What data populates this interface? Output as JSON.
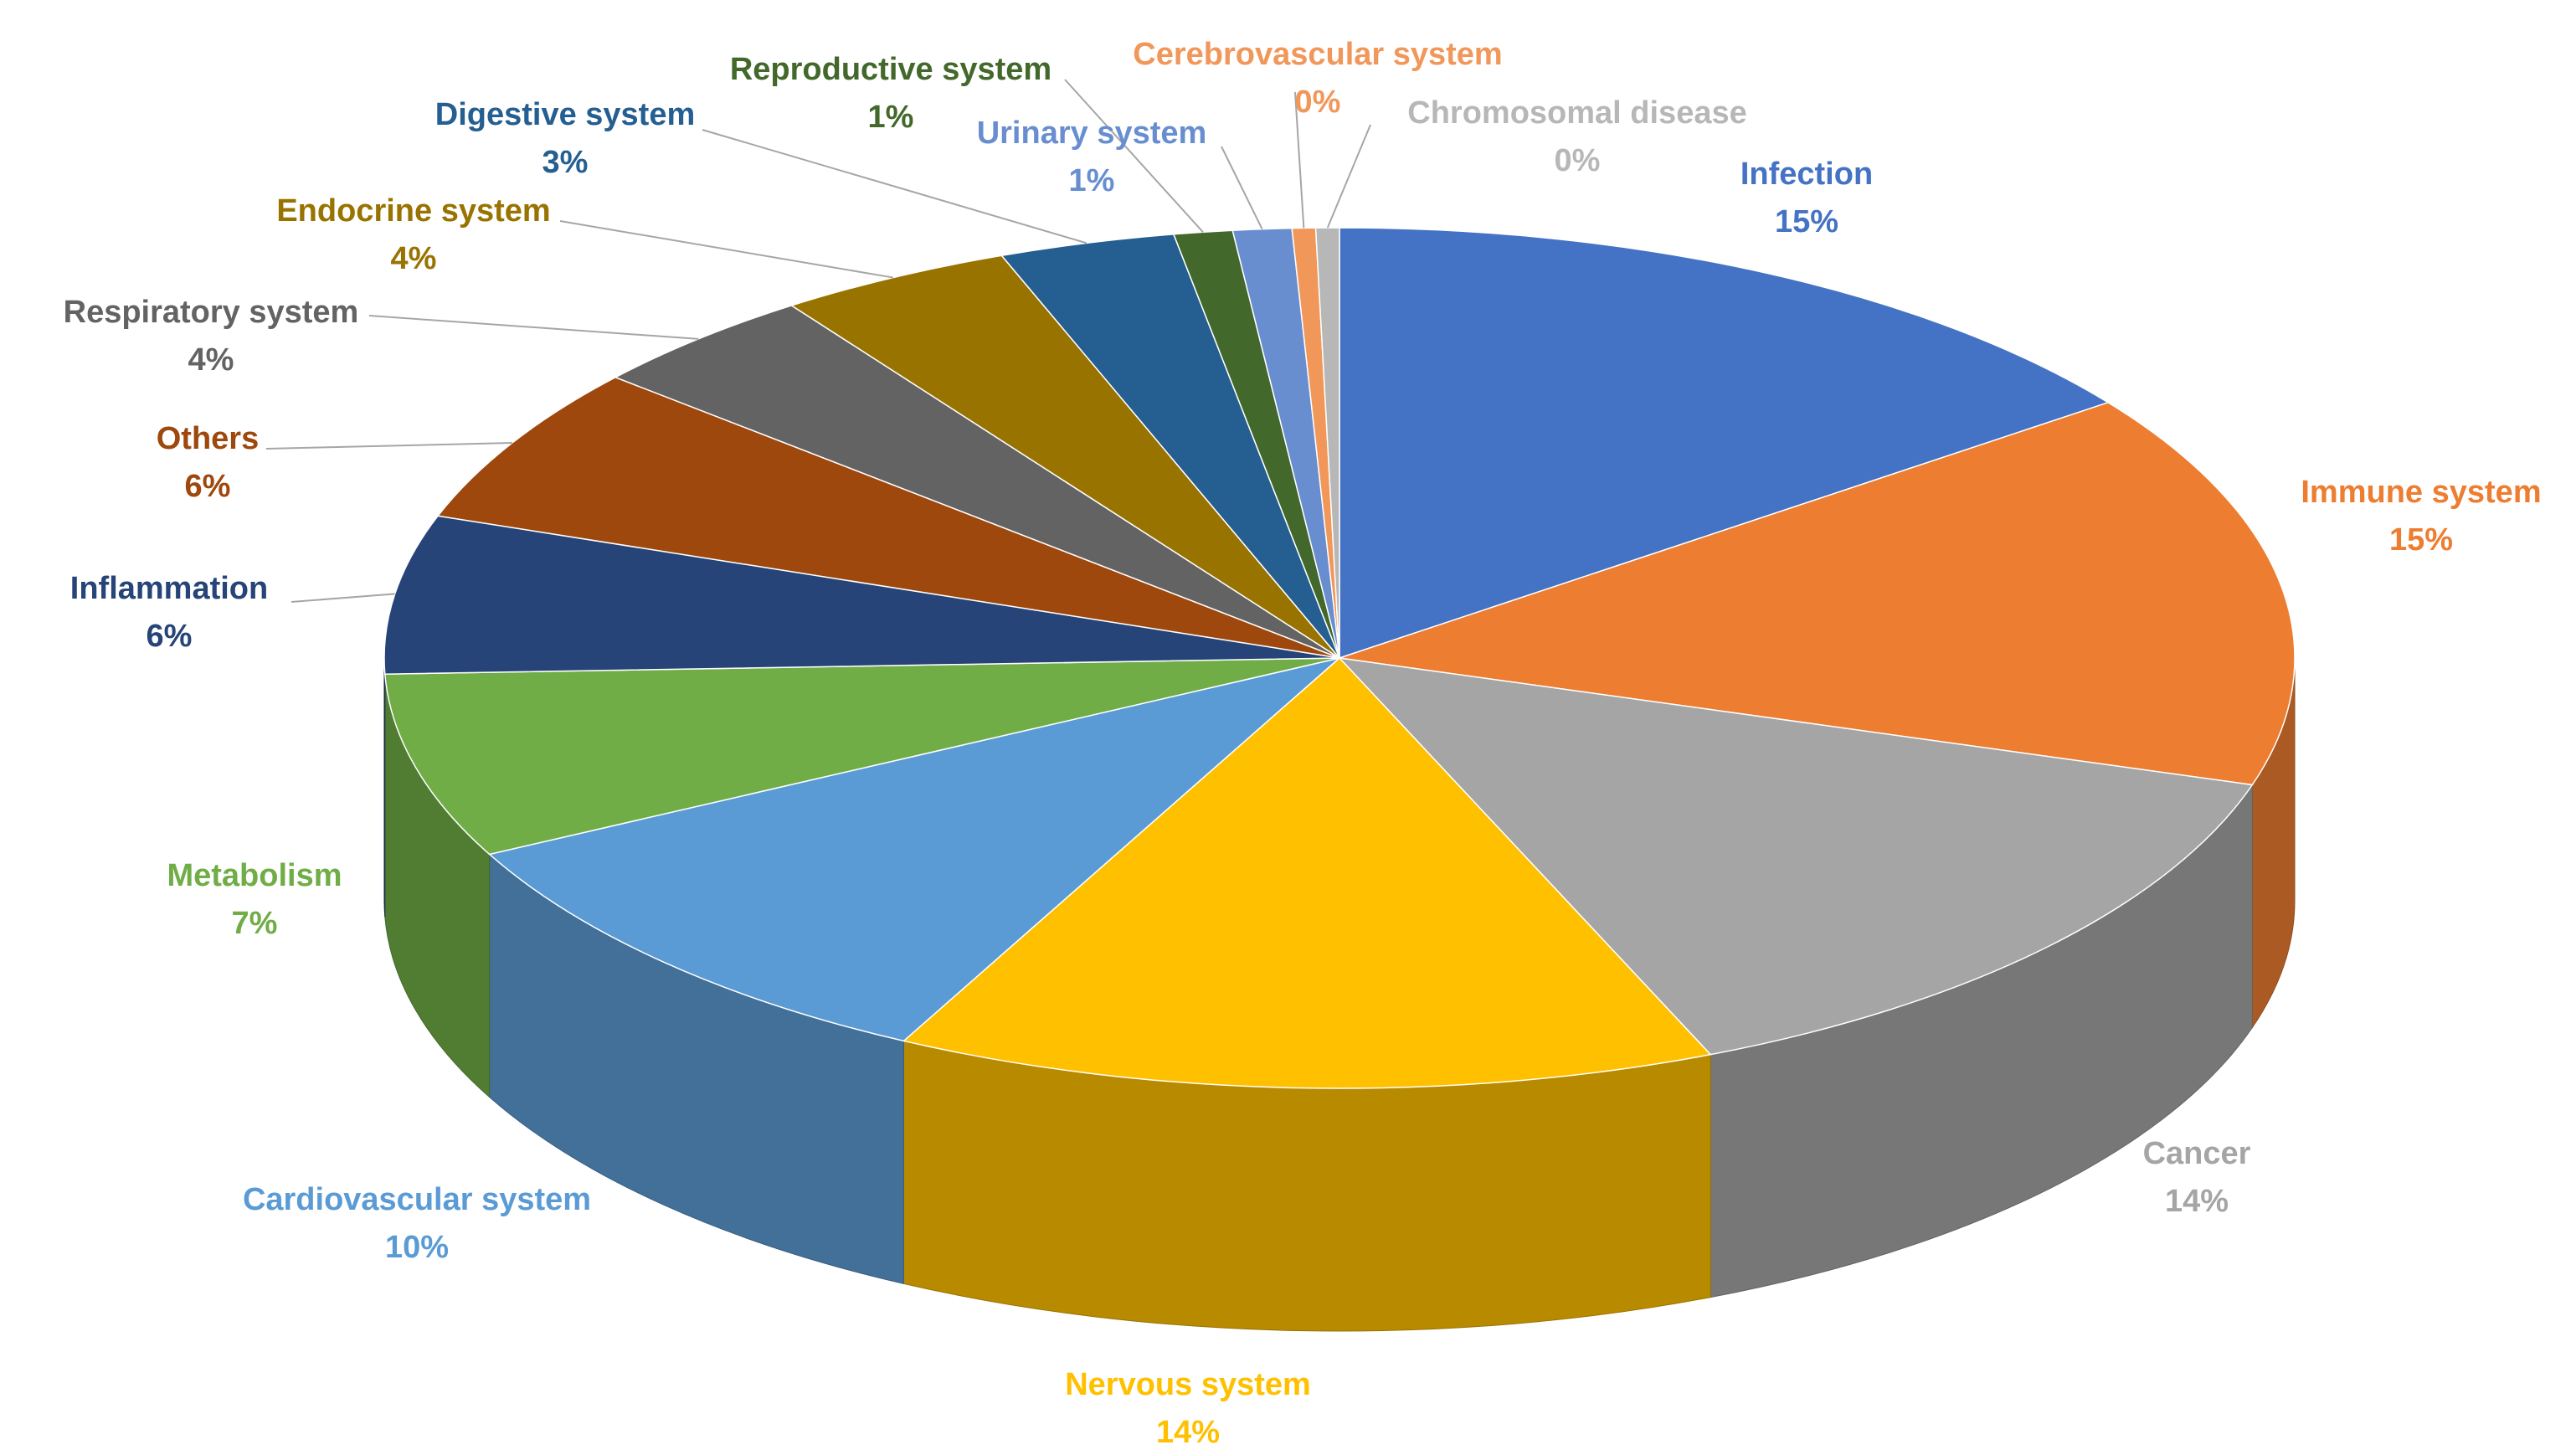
{
  "chart_data": {
    "type": "pie",
    "categories": [
      "Infection",
      "Immune system",
      "Cancer",
      "Nervous system",
      "Cardiovascular system",
      "Metabolism",
      "Inflammation",
      "Others",
      "Respiratory system",
      "Endocrine system",
      "Digestive system",
      "Reproductive system",
      "Urinary system",
      "Cerebrovascular system",
      "Chromosomal disease"
    ],
    "values": [
      15,
      15,
      14,
      14,
      10,
      7,
      6,
      6,
      4,
      4,
      3,
      1,
      1,
      0.4,
      0.4
    ],
    "value_labels": [
      "15%",
      "15%",
      "14%",
      "14%",
      "10%",
      "7%",
      "6%",
      "6%",
      "4%",
      "4%",
      "3%",
      "1%",
      "1%",
      "0%",
      "0%"
    ],
    "colors": [
      "#4472C4",
      "#ED7D31",
      "#A5A5A5",
      "#FFC000",
      "#5B9BD5",
      "#70AD47",
      "#264478",
      "#9E480E",
      "#636363",
      "#997300",
      "#255E91",
      "#43682B",
      "#698ED0",
      "#F1975A",
      "#B7B7B7"
    ]
  }
}
